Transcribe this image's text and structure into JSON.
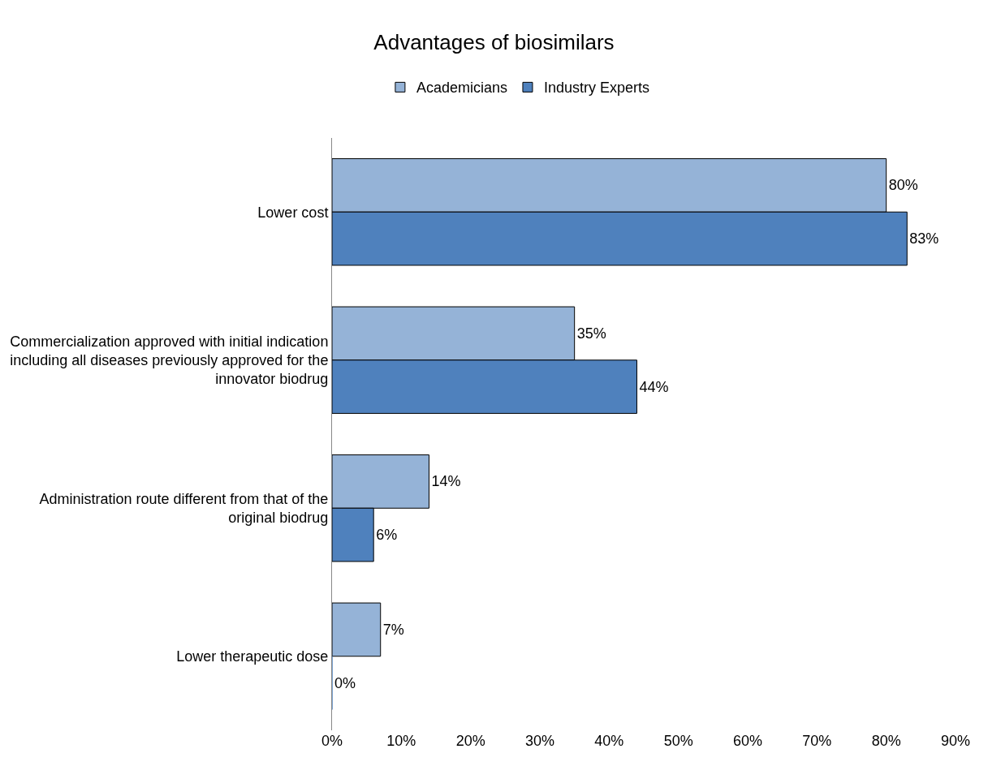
{
  "chart_data": {
    "type": "bar",
    "orientation": "horizontal",
    "title": "Advantages of biosimilars",
    "categories": [
      "Lower cost",
      "Commercialization approved with initial indication including all diseases previously approved for the innovator biodrug",
      "Administration route different from that of the original biodrug",
      "Lower therapeutic dose"
    ],
    "series": [
      {
        "name": "Academicians",
        "color": "#95b3d7",
        "values": [
          80,
          35,
          14,
          7
        ],
        "value_labels": [
          "80%",
          "35%",
          "14%",
          "7%"
        ]
      },
      {
        "name": "Industry Experts",
        "color": "#4f81bd",
        "values": [
          83,
          44,
          6,
          0
        ],
        "value_labels": [
          "83%",
          "44%",
          "6%",
          "0%"
        ]
      }
    ],
    "xlim": [
      0,
      90
    ],
    "xticks": [
      {
        "value": 0,
        "label": "0%"
      },
      {
        "value": 10,
        "label": "10%"
      },
      {
        "value": 20,
        "label": "20%"
      },
      {
        "value": 30,
        "label": "30%"
      },
      {
        "value": 40,
        "label": "40%"
      },
      {
        "value": 50,
        "label": "50%"
      },
      {
        "value": 60,
        "label": "60%"
      },
      {
        "value": 70,
        "label": "70%"
      },
      {
        "value": 80,
        "label": "80%"
      },
      {
        "value": 90,
        "label": "90%"
      }
    ],
    "legend": "top"
  }
}
